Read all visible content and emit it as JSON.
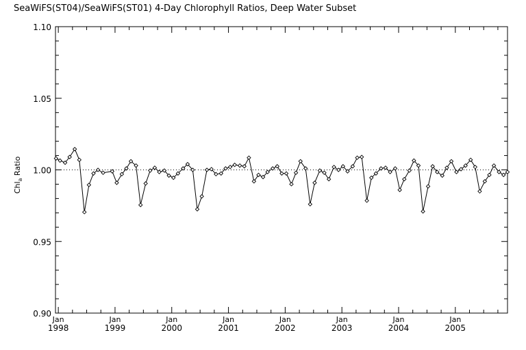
{
  "chart_data": {
    "type": "line",
    "title": "SeaWiFS(ST04)/SeaWiFS(ST01) 4-Day Chlorophyll Ratios, Deep Water Subset",
    "ylabel": "Chl",
    "ylabel_sub": "a",
    "ylabel_rest": " Ratio",
    "xlabel": "",
    "ylim": [
      0.9,
      1.1
    ],
    "xlim": [
      1997.95,
      2005.92
    ],
    "yticks": [
      {
        "v": 0.9,
        "label": "0.90"
      },
      {
        "v": 0.95,
        "label": "0.95"
      },
      {
        "v": 1.0,
        "label": "1.00"
      },
      {
        "v": 1.05,
        "label": "1.05"
      },
      {
        "v": 1.1,
        "label": "1.10"
      }
    ],
    "xticks": [
      {
        "v": 1998,
        "month": "Jan",
        "year": "1998"
      },
      {
        "v": 1999,
        "month": "Jan",
        "year": "1999"
      },
      {
        "v": 2000,
        "month": "Jan",
        "year": "2000"
      },
      {
        "v": 2001,
        "month": "Jan",
        "year": "2001"
      },
      {
        "v": 2002,
        "month": "Jan",
        "year": "2002"
      },
      {
        "v": 2003,
        "month": "Jan",
        "year": "2003"
      },
      {
        "v": 2004,
        "month": "Jan",
        "year": "2004"
      },
      {
        "v": 2005,
        "month": "Jan",
        "year": "2005"
      }
    ],
    "reference_line": 1.0,
    "grid": false,
    "x": [
      1997.96,
      1998.03,
      1998.12,
      1998.2,
      1998.29,
      1998.37,
      1998.46,
      1998.54,
      1998.62,
      1998.7,
      1998.79,
      1998.95,
      1999.03,
      1999.12,
      1999.2,
      1999.28,
      1999.37,
      1999.45,
      1999.54,
      1999.62,
      1999.7,
      1999.78,
      1999.87,
      1999.95,
      2000.03,
      2000.11,
      2000.2,
      2000.28,
      2000.37,
      2000.45,
      2000.53,
      2000.62,
      2000.7,
      2000.78,
      2000.87,
      2000.95,
      2001.03,
      2001.11,
      2001.2,
      2001.28,
      2001.36,
      2001.45,
      2001.53,
      2001.61,
      2001.69,
      2001.78,
      2001.86,
      2001.94,
      2002.02,
      2002.11,
      2002.19,
      2002.27,
      2002.36,
      2002.44,
      2002.52,
      2002.61,
      2002.69,
      2002.77,
      2002.86,
      2002.94,
      2003.02,
      2003.1,
      2003.19,
      2003.27,
      2003.35,
      2003.44,
      2003.52,
      2003.6,
      2003.69,
      2003.77,
      2003.85,
      2003.94,
      2004.02,
      2004.1,
      2004.19,
      2004.27,
      2004.35,
      2004.43,
      2004.52,
      2004.6,
      2004.68,
      2004.77,
      2004.85,
      2004.93,
      2005.02,
      2005.1,
      2005.18,
      2005.27,
      2005.35,
      2005.43,
      2005.52,
      2005.6,
      2005.68,
      2005.77,
      2005.85,
      2005.92
    ],
    "values": [
      1.008,
      1.0065,
      1.005,
      1.009,
      1.0145,
      1.007,
      0.9705,
      0.9895,
      0.9975,
      1.0,
      0.998,
      0.999,
      0.991,
      0.997,
      1.001,
      1.006,
      1.003,
      0.9755,
      0.9905,
      0.9995,
      1.0015,
      0.9985,
      0.9995,
      0.996,
      0.9945,
      0.9975,
      1.001,
      1.004,
      1.0,
      0.9725,
      0.9815,
      1.0,
      1.0005,
      0.997,
      0.9975,
      1.001,
      1.002,
      1.0035,
      1.003,
      1.0025,
      1.0085,
      0.992,
      0.9965,
      0.995,
      0.9985,
      1.001,
      1.0025,
      0.9975,
      0.9975,
      0.99,
      0.998,
      1.006,
      1.001,
      0.976,
      0.991,
      0.9995,
      0.998,
      0.9935,
      1.002,
      1.0,
      1.0025,
      0.999,
      1.0025,
      1.0085,
      1.009,
      0.9785,
      0.9945,
      0.9975,
      1.001,
      1.0015,
      0.9985,
      1.001,
      0.986,
      0.9935,
      0.9995,
      1.0065,
      1.003,
      0.971,
      0.9885,
      1.0025,
      0.9985,
      0.996,
      1.0015,
      1.006,
      0.9985,
      1.0005,
      1.003,
      1.007,
      1.002,
      0.985,
      0.992,
      0.9965,
      1.003,
      0.9985,
      0.9965,
      0.9985
    ]
  }
}
